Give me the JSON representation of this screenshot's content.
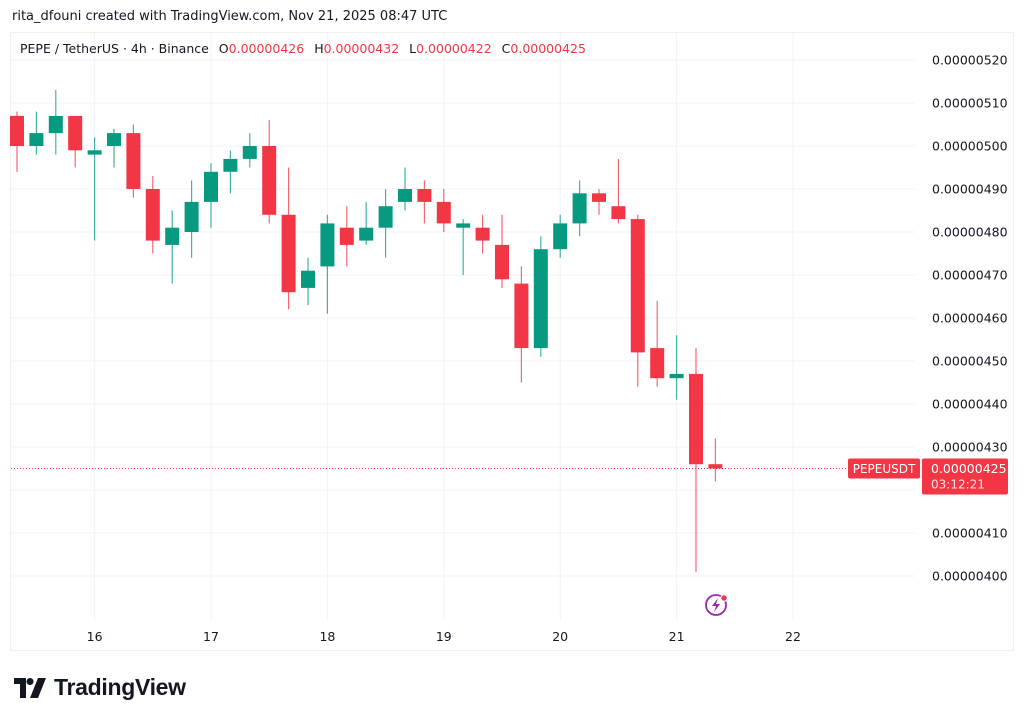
{
  "credit": "rita_dfouni created with TradingView.com, Nov 21, 2025 08:47 UTC",
  "legend": {
    "symbol": "PEPE / TetherUS · 4h · Binance",
    "o_label": "O",
    "o": "0.00000426",
    "h_label": "H",
    "h": "0.00000432",
    "l_label": "L",
    "l": "0.00000422",
    "c_label": "C",
    "c": "0.00000425"
  },
  "last_price": {
    "ticker": "PEPEUSDT",
    "price": "0.00000425",
    "countdown": "03:12:21"
  },
  "brand": "TradingView",
  "colors": {
    "up": "#089981",
    "down": "#f23645",
    "grid": "#f0f3fa",
    "alert": "#9c27b0"
  },
  "chart_data": {
    "type": "candlestick",
    "interval": "4h",
    "ylim": [
      3.95e-06,
      5.25e-06
    ],
    "y_ticks": [
      "0.00000520",
      "0.00000510",
      "0.00000500",
      "0.00000490",
      "0.00000480",
      "0.00000470",
      "0.00000460",
      "0.00000450",
      "0.00000440",
      "0.00000430",
      "0.00000410",
      "0.00000400"
    ],
    "x_ticks": [
      {
        "label": "16",
        "candle": 4
      },
      {
        "label": "17",
        "candle": 10
      },
      {
        "label": "18",
        "candle": 16
      },
      {
        "label": "19",
        "candle": 22
      },
      {
        "label": "20",
        "candle": 28
      },
      {
        "label": "21",
        "candle": 34
      },
      {
        "label": "22",
        "candle": 40
      }
    ],
    "grid": true,
    "candles": [
      [
        507,
        508,
        494,
        500
      ],
      [
        500,
        508,
        498,
        503
      ],
      [
        503,
        513,
        498,
        507
      ],
      [
        507,
        507,
        495,
        499
      ],
      [
        498,
        502,
        478,
        499
      ],
      [
        500,
        504,
        495,
        503
      ],
      [
        503,
        505,
        488,
        490
      ],
      [
        490,
        493,
        475,
        478
      ],
      [
        477,
        485,
        468,
        481
      ],
      [
        480,
        492,
        474,
        487
      ],
      [
        487,
        496,
        481,
        494
      ],
      [
        494,
        499,
        489,
        497
      ],
      [
        497,
        503,
        495,
        500
      ],
      [
        500,
        506,
        482,
        484
      ],
      [
        484,
        495,
        462,
        466
      ],
      [
        467,
        474,
        463,
        471
      ],
      [
        472,
        484,
        461,
        482
      ],
      [
        481,
        486,
        472,
        477
      ],
      [
        478,
        487,
        477,
        481
      ],
      [
        481,
        490,
        474,
        486
      ],
      [
        487,
        495,
        485,
        490
      ],
      [
        490,
        492,
        482,
        487
      ],
      [
        487,
        490,
        480,
        482
      ],
      [
        481,
        483,
        470,
        482
      ],
      [
        481,
        484,
        475,
        478
      ],
      [
        477,
        484,
        467,
        469
      ],
      [
        468,
        472,
        445,
        453
      ],
      [
        453,
        479,
        451,
        476
      ],
      [
        476,
        484,
        474,
        482
      ],
      [
        482,
        492,
        479,
        489
      ],
      [
        489,
        490,
        484,
        487
      ],
      [
        486,
        497,
        482,
        483
      ],
      [
        483,
        484,
        444,
        452
      ],
      [
        453,
        464,
        444,
        446
      ],
      [
        446,
        456,
        441,
        447
      ],
      [
        447,
        453,
        401,
        426
      ],
      [
        426,
        432,
        422,
        425
      ]
    ],
    "candle_format": "[open, high, low, close] in units of 0.00000001 USDT"
  }
}
